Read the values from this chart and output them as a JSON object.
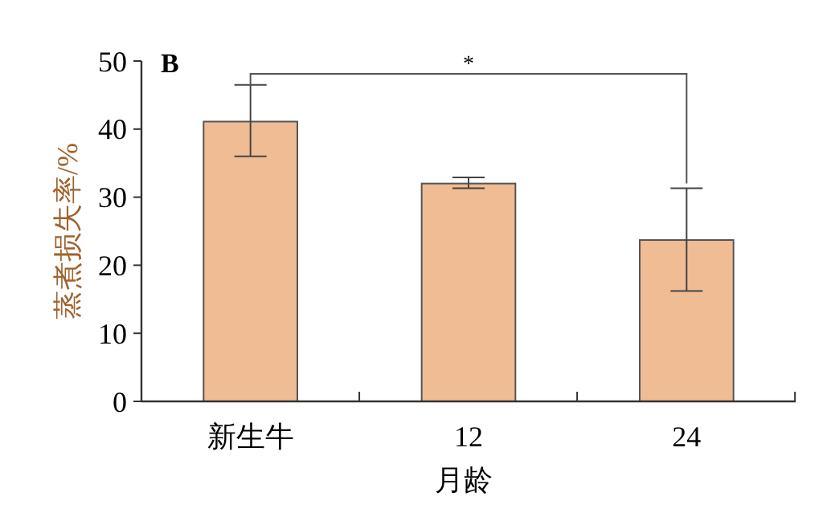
{
  "chart_data": {
    "type": "bar",
    "ylabel": "蒸煮损失率/%",
    "xlabel": "月龄",
    "categories": [
      "新生牛",
      "12",
      "24"
    ],
    "values": [
      41.1,
      32.0,
      23.7
    ],
    "errors": [
      [
        36.0,
        46.5
      ],
      [
        31.3,
        32.9
      ],
      [
        16.2,
        31.3
      ]
    ],
    "color": "#f0bc94",
    "ylim": [
      0,
      50
    ],
    "yticks": [
      0,
      10,
      20,
      30,
      40,
      50
    ],
    "annotations": [
      "B",
      "*"
    ]
  }
}
